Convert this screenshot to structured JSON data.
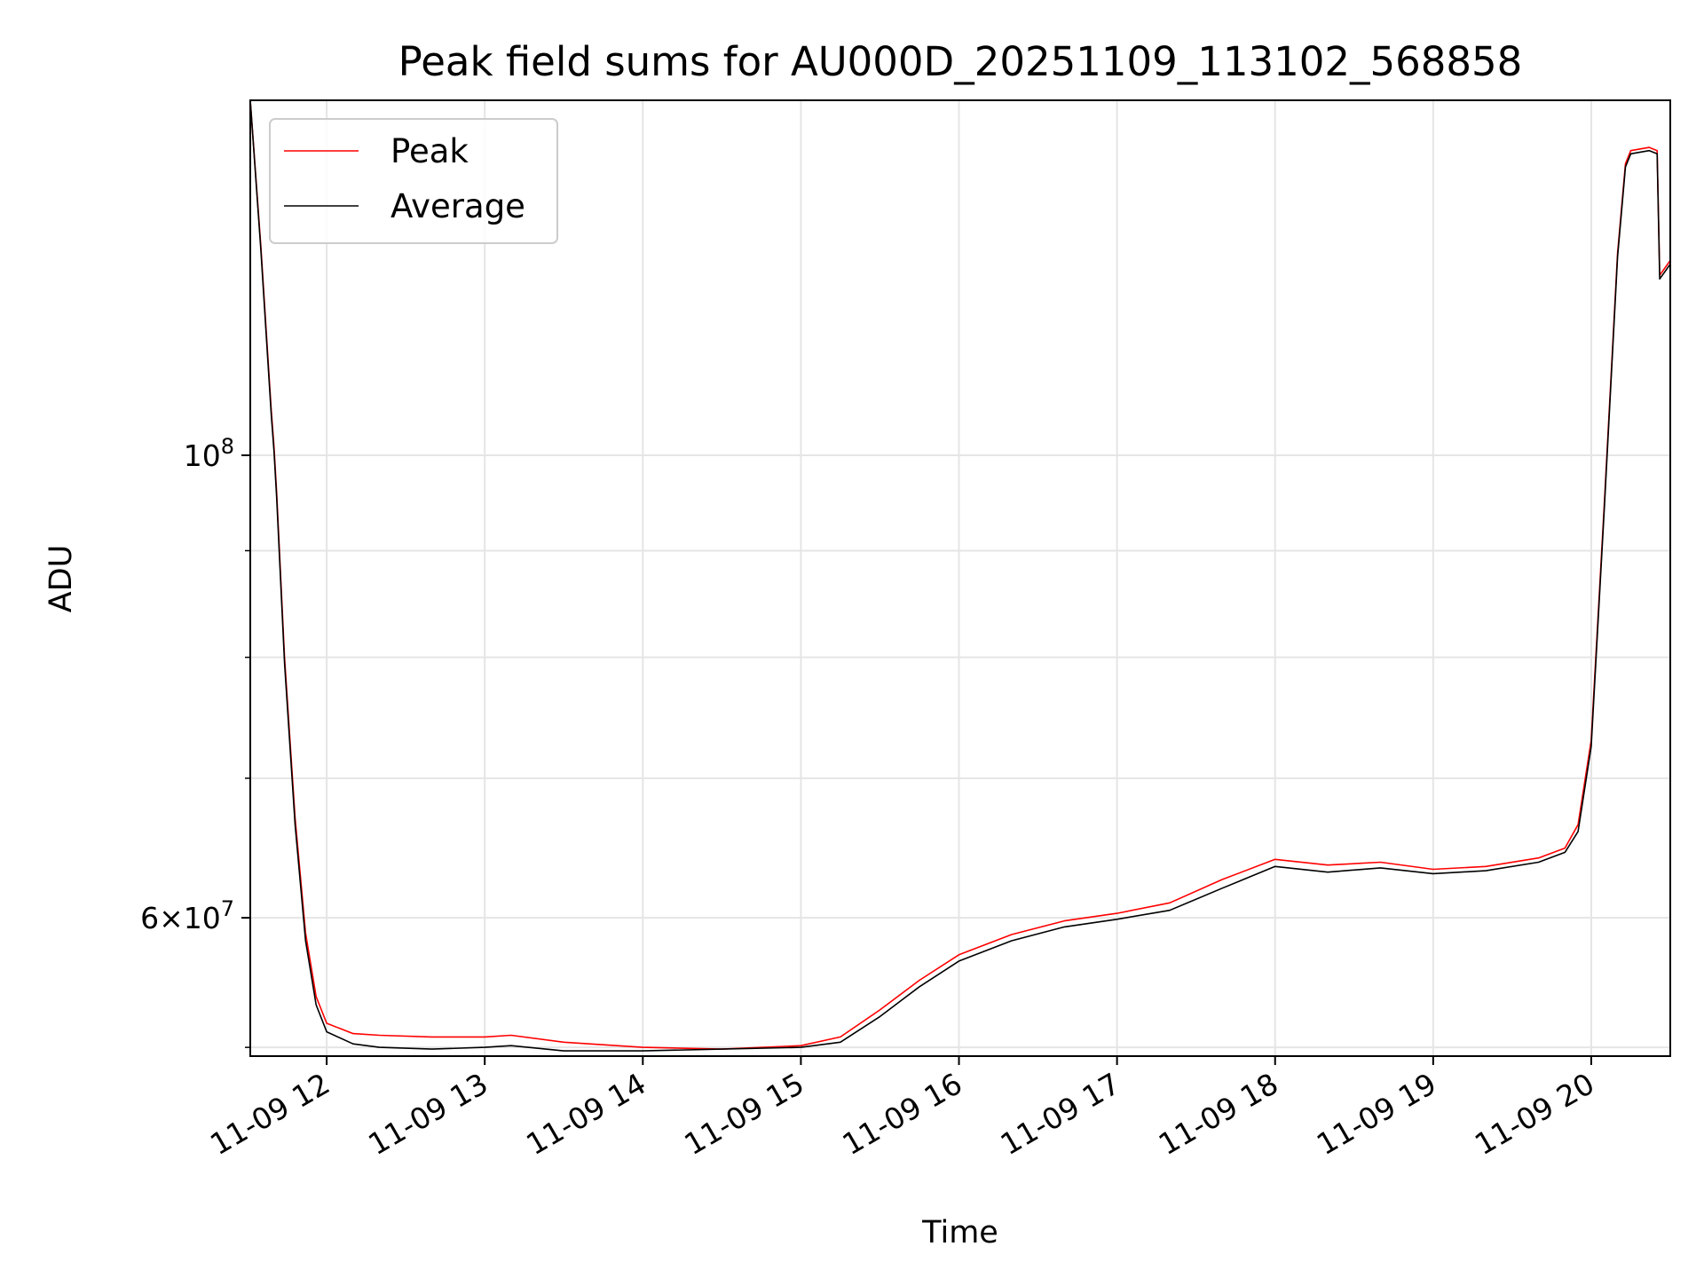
{
  "chart_data": {
    "type": "line",
    "title": "Peak field sums for AU000D_20251109_113102_568858",
    "xlabel": "Time",
    "ylabel": "ADU",
    "yscale": "log",
    "grid": true,
    "legend_position": "top-left",
    "xlim": [
      "2025-11-09 11:31",
      "2025-11-09 20:30"
    ],
    "ylim": [
      51500000,
      148000000
    ],
    "x_ticks": [
      "11-09 12",
      "11-09 13",
      "11-09 14",
      "11-09 15",
      "11-09 16",
      "11-09 17",
      "11-09 18",
      "11-09 19",
      "11-09 20"
    ],
    "y_major_ticks": [
      {
        "value": 100000000,
        "label": "10^8"
      },
      {
        "value": 60000000,
        "label": "6×10^7"
      }
    ],
    "y_minor_ticks": [
      52000000,
      70000000,
      80000000,
      90000000,
      100000000
    ],
    "series": [
      {
        "name": "Peak",
        "color": "#ff0000",
        "x": [
          "2025-11-09 11:31",
          "2025-11-09 11:35",
          "2025-11-09 11:39",
          "2025-11-09 11:40",
          "2025-11-09 11:41",
          "2025-11-09 11:44",
          "2025-11-09 11:48",
          "2025-11-09 11:52",
          "2025-11-09 11:56",
          "2025-11-09 12:00",
          "2025-11-09 12:10",
          "2025-11-09 12:20",
          "2025-11-09 12:40",
          "2025-11-09 13:00",
          "2025-11-09 13:10",
          "2025-11-09 13:30",
          "2025-11-09 14:00",
          "2025-11-09 14:30",
          "2025-11-09 15:00",
          "2025-11-09 15:15",
          "2025-11-09 15:30",
          "2025-11-09 15:45",
          "2025-11-09 16:00",
          "2025-11-09 16:20",
          "2025-11-09 16:40",
          "2025-11-09 17:00",
          "2025-11-09 17:20",
          "2025-11-09 17:40",
          "2025-11-09 18:00",
          "2025-11-09 18:20",
          "2025-11-09 18:40",
          "2025-11-09 19:00",
          "2025-11-09 19:20",
          "2025-11-09 19:40",
          "2025-11-09 19:50",
          "2025-11-09 19:55",
          "2025-11-09 20:00",
          "2025-11-09 20:05",
          "2025-11-09 20:10",
          "2025-11-09 20:13",
          "2025-11-09 20:15",
          "2025-11-09 20:22",
          "2025-11-09 20:25",
          "2025-11-09 20:26",
          "2025-11-09 20:30"
        ],
        "values": [
          148000000,
          126000000,
          105000000,
          101000000,
          96000000,
          80000000,
          67000000,
          59000000,
          55000000,
          53400000,
          52800000,
          52700000,
          52600000,
          52600000,
          52700000,
          52300000,
          52000000,
          51900000,
          52100000,
          52600000,
          54200000,
          56000000,
          57600000,
          58900000,
          59800000,
          60300000,
          61000000,
          62600000,
          64000000,
          63600000,
          63800000,
          63300000,
          63500000,
          64100000,
          64800000,
          66500000,
          73000000,
          95000000,
          125000000,
          138000000,
          140000000,
          140500000,
          140000000,
          122000000,
          124000000
        ]
      },
      {
        "name": "Average",
        "color": "#000000",
        "x": [
          "2025-11-09 11:31",
          "2025-11-09 11:35",
          "2025-11-09 11:39",
          "2025-11-09 11:40",
          "2025-11-09 11:41",
          "2025-11-09 11:44",
          "2025-11-09 11:48",
          "2025-11-09 11:52",
          "2025-11-09 11:56",
          "2025-11-09 12:00",
          "2025-11-09 12:10",
          "2025-11-09 12:20",
          "2025-11-09 12:40",
          "2025-11-09 13:00",
          "2025-11-09 13:10",
          "2025-11-09 13:30",
          "2025-11-09 14:00",
          "2025-11-09 14:30",
          "2025-11-09 15:00",
          "2025-11-09 15:15",
          "2025-11-09 15:30",
          "2025-11-09 15:45",
          "2025-11-09 16:00",
          "2025-11-09 16:20",
          "2025-11-09 16:40",
          "2025-11-09 17:00",
          "2025-11-09 17:20",
          "2025-11-09 17:40",
          "2025-11-09 18:00",
          "2025-11-09 18:20",
          "2025-11-09 18:40",
          "2025-11-09 19:00",
          "2025-11-09 19:20",
          "2025-11-09 19:40",
          "2025-11-09 19:50",
          "2025-11-09 19:55",
          "2025-11-09 20:00",
          "2025-11-09 20:05",
          "2025-11-09 20:10",
          "2025-11-09 20:13",
          "2025-11-09 20:15",
          "2025-11-09 20:22",
          "2025-11-09 20:25",
          "2025-11-09 20:26",
          "2025-11-09 20:30"
        ],
        "values": [
          148000000,
          125500000,
          104500000,
          100500000,
          95500000,
          79500000,
          66500000,
          58500000,
          54500000,
          52900000,
          52200000,
          52000000,
          51900000,
          52000000,
          52100000,
          51800000,
          51800000,
          51900000,
          52000000,
          52300000,
          53800000,
          55600000,
          57200000,
          58500000,
          59400000,
          59900000,
          60500000,
          62000000,
          63500000,
          63100000,
          63400000,
          63000000,
          63200000,
          63800000,
          64500000,
          66000000,
          72500000,
          94500000,
          124500000,
          137500000,
          139500000,
          140000000,
          139500000,
          121500000,
          123500000
        ]
      }
    ]
  }
}
